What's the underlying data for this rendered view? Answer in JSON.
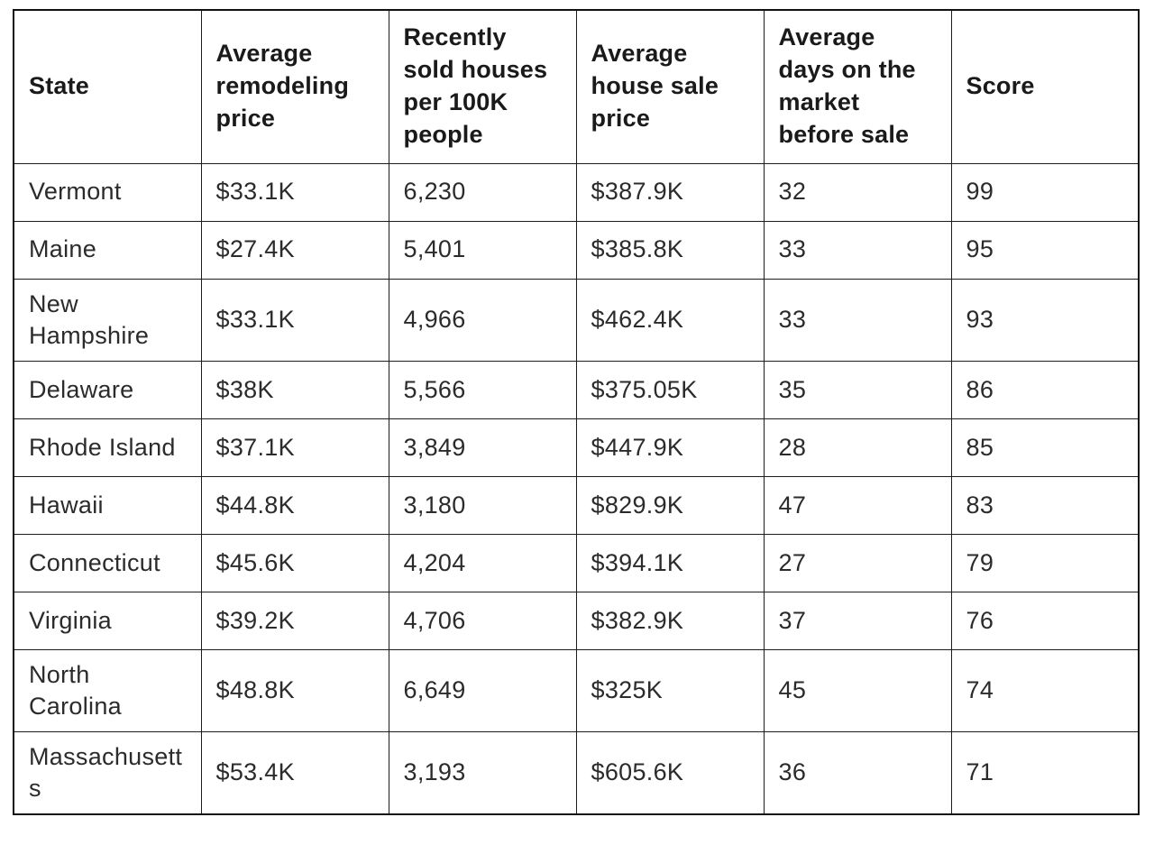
{
  "colors": {
    "background": "#ffffff",
    "border": "#1c1c1c",
    "outer_border": "#111111",
    "header_text": "#1a1a1a",
    "body_text": "#2b2b2b"
  },
  "chart_data": {
    "type": "table",
    "title": "",
    "columns": [
      "State",
      "Average remodeling price",
      "Recently sold houses per 100K people",
      "Average house sale price",
      "Average days on the market before sale",
      "Score"
    ],
    "rows": [
      [
        "Vermont",
        "$33.1K",
        "6,230",
        "$387.9K",
        "32",
        "99"
      ],
      [
        "Maine",
        "$27.4K",
        "5,401",
        "$385.8K",
        "33",
        "95"
      ],
      [
        "New Hampshire",
        "$33.1K",
        "4,966",
        "$462.4K",
        "33",
        "93"
      ],
      [
        "Delaware",
        "$38K",
        "5,566",
        "$375.05K",
        "35",
        "86"
      ],
      [
        "Rhode Island",
        "$37.1K",
        "3,849",
        "$447.9K",
        "28",
        "85"
      ],
      [
        "Hawaii",
        "$44.8K",
        "3,180",
        "$829.9K",
        "47",
        "83"
      ],
      [
        "Connecticut",
        "$45.6K",
        "4,204",
        "$394.1K",
        "27",
        "79"
      ],
      [
        "Virginia",
        "$39.2K",
        "4,706",
        "$382.9K",
        "37",
        "76"
      ],
      [
        "North Carolina",
        "$48.8K",
        "6,649",
        "$325K",
        "45",
        "74"
      ],
      [
        "Massachusetts",
        "$53.4K",
        "3,193",
        "$605.6K",
        "36",
        "71"
      ]
    ]
  }
}
